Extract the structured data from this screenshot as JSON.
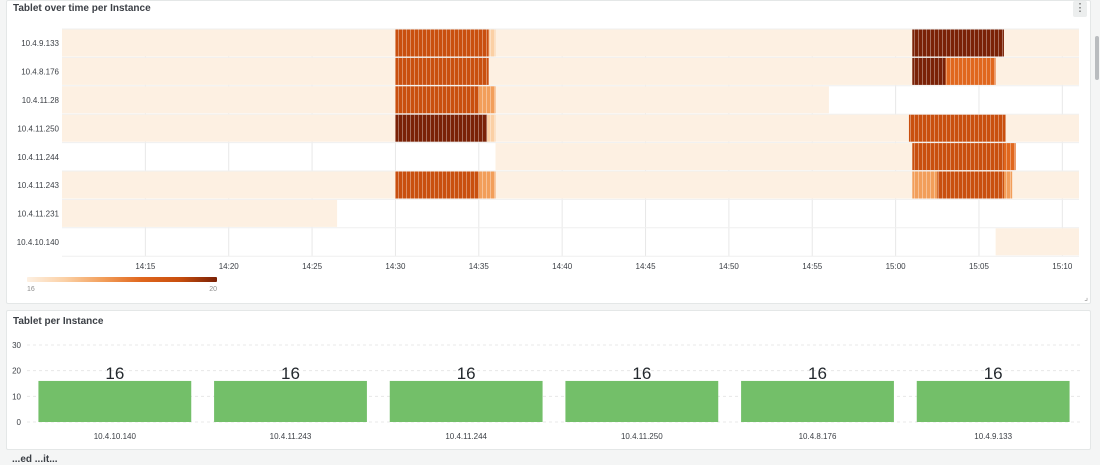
{
  "panels": {
    "heatmap": {
      "title": "Tablet over time per Instance",
      "menu_icon": "more-vertical-icon",
      "legend": {
        "min_label": "16",
        "max_label": "20"
      }
    },
    "bars": {
      "title": "Tablet per Instance"
    },
    "next_title": "...ed ...it..."
  },
  "colors": {
    "heat_base": "#fdf0e2",
    "heat_scale": [
      "#fdf0e2",
      "#fbd0a5",
      "#f29e5a",
      "#e0671e",
      "#c94f0e",
      "#7a2106"
    ],
    "bar": "#73bf69",
    "grid": "#e8e8e8"
  },
  "chart_data": [
    {
      "type": "heatmap",
      "title": "Tablet over time per Instance",
      "x_ticks": [
        "14:15",
        "14:20",
        "14:25",
        "14:30",
        "14:35",
        "14:40",
        "14:45",
        "14:50",
        "14:55",
        "15:00",
        "15:05",
        "15:10"
      ],
      "y_categories": [
        "10.4.9.133",
        "10.4.8.176",
        "10.4.11.28",
        "10.4.11.250",
        "10.4.11.244",
        "10.4.11.243",
        "10.4.11.231",
        "10.4.10.140"
      ],
      "value_range": [
        16,
        20
      ],
      "rows": [
        {
          "instance": "10.4.9.133",
          "segments": [
            {
              "start": "14:10",
              "end": "14:30",
              "value": 16
            },
            {
              "start": "14:30",
              "end": "14:35.6",
              "value": 19
            },
            {
              "start": "14:35.6",
              "end": "14:36",
              "value": 17
            },
            {
              "start": "14:36",
              "end": "15:01",
              "value": 16
            },
            {
              "start": "15:01",
              "end": "15:06.5",
              "value": 20
            },
            {
              "start": "15:06.5",
              "end": "15:11",
              "value": 16
            }
          ]
        },
        {
          "instance": "10.4.8.176",
          "segments": [
            {
              "start": "14:10",
              "end": "14:30",
              "value": 16
            },
            {
              "start": "14:30",
              "end": "14:35.6",
              "value": 19
            },
            {
              "start": "14:35.6",
              "end": "15:01",
              "value": 16
            },
            {
              "start": "15:01",
              "end": "15:03",
              "value": 20
            },
            {
              "start": "15:03",
              "end": "15:06",
              "value": 18.5
            },
            {
              "start": "15:06",
              "end": "15:11",
              "value": 16
            }
          ]
        },
        {
          "instance": "10.4.11.28",
          "segments": [
            {
              "start": "14:10",
              "end": "14:30",
              "value": 16
            },
            {
              "start": "14:30",
              "end": "14:35",
              "value": 19
            },
            {
              "start": "14:35",
              "end": "14:36",
              "value": 17.5
            },
            {
              "start": "14:36",
              "end": "14:56",
              "value": 16
            }
          ]
        },
        {
          "instance": "10.4.11.250",
          "segments": [
            {
              "start": "14:10",
              "end": "14:30",
              "value": 16
            },
            {
              "start": "14:30",
              "end": "14:35.5",
              "value": 20
            },
            {
              "start": "14:35.5",
              "end": "14:36",
              "value": 17
            },
            {
              "start": "14:36",
              "end": "15:00.8",
              "value": 16
            },
            {
              "start": "15:00.8",
              "end": "15:06.6",
              "value": 19
            },
            {
              "start": "15:06.6",
              "end": "15:11",
              "value": 16
            }
          ]
        },
        {
          "instance": "10.4.11.244",
          "segments": [
            {
              "start": "14:36",
              "end": "15:01",
              "value": 16
            },
            {
              "start": "15:01",
              "end": "15:06.5",
              "value": 19
            },
            {
              "start": "15:06.5",
              "end": "15:07.2",
              "value": 18
            }
          ]
        },
        {
          "instance": "10.4.11.243",
          "segments": [
            {
              "start": "14:10",
              "end": "14:30",
              "value": 16
            },
            {
              "start": "14:30",
              "end": "14:35",
              "value": 19
            },
            {
              "start": "14:35",
              "end": "14:36",
              "value": 17.5
            },
            {
              "start": "14:36",
              "end": "15:01",
              "value": 16
            },
            {
              "start": "15:01",
              "end": "15:02.5",
              "value": 17.5
            },
            {
              "start": "15:02.5",
              "end": "15:06.5",
              "value": 19
            },
            {
              "start": "15:06.5",
              "end": "15:07",
              "value": 17.5
            },
            {
              "start": "15:07",
              "end": "15:11",
              "value": 16
            }
          ]
        },
        {
          "instance": "10.4.11.231",
          "segments": [
            {
              "start": "14:10",
              "end": "14:26.5",
              "value": 16
            }
          ]
        },
        {
          "instance": "10.4.10.140",
          "segments": [
            {
              "start": "15:06",
              "end": "15:11",
              "value": 16
            }
          ]
        }
      ]
    },
    {
      "type": "bar",
      "title": "Tablet per Instance",
      "categories": [
        "10.4.10.140",
        "10.4.11.243",
        "10.4.11.244",
        "10.4.11.250",
        "10.4.8.176",
        "10.4.9.133"
      ],
      "values": [
        16,
        16,
        16,
        16,
        16,
        16
      ],
      "y_ticks": [
        0,
        10,
        20,
        30
      ],
      "ylim": [
        0,
        30
      ],
      "grid": true
    }
  ]
}
